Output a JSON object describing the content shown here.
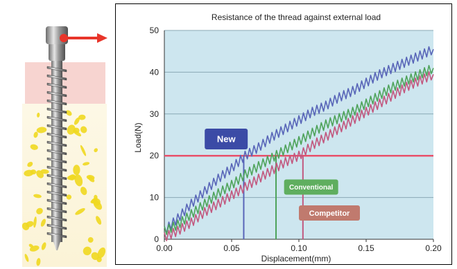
{
  "chart_data": {
    "type": "line",
    "title": "Resistance of the thread against external load",
    "xlabel": "Displacement(mm)",
    "ylabel": "Load(N)",
    "xlim": [
      0,
      0.2
    ],
    "ylim": [
      0,
      50
    ],
    "x_ticks": [
      "0.00",
      "0.05",
      "0.10",
      "0.15",
      "0.20"
    ],
    "y_ticks": [
      "0",
      "10",
      "20",
      "30",
      "40",
      "50"
    ],
    "grid": "horizontal",
    "reference_line": {
      "y": 20,
      "color": "#e8506a"
    },
    "series": [
      {
        "name": "New",
        "color": "#5865b8",
        "x": [
          0,
          0.01,
          0.02,
          0.03,
          0.04,
          0.05,
          0.06,
          0.07,
          0.08,
          0.09,
          0.1,
          0.11,
          0.12,
          0.13,
          0.14,
          0.15,
          0.16,
          0.17,
          0.18,
          0.19,
          0.2
        ],
        "y": [
          2,
          5,
          8.5,
          11.5,
          14.5,
          17,
          20,
          22,
          24.5,
          26.5,
          28.5,
          30.5,
          32,
          34,
          35.5,
          37.5,
          39.5,
          41,
          42.5,
          44,
          45.5
        ],
        "crossing_x": 0.059
      },
      {
        "name": "Conventional",
        "color": "#4ea35a",
        "x": [
          0,
          0.01,
          0.02,
          0.03,
          0.04,
          0.05,
          0.06,
          0.07,
          0.08,
          0.09,
          0.1,
          0.11,
          0.12,
          0.13,
          0.14,
          0.15,
          0.16,
          0.17,
          0.18,
          0.19,
          0.2
        ],
        "y": [
          2,
          3.5,
          6,
          8.5,
          11,
          13,
          15.5,
          17.5,
          19.5,
          21.5,
          23.5,
          25.5,
          27.5,
          29,
          30.5,
          32.5,
          34.5,
          36.5,
          38,
          39.5,
          41
        ],
        "crossing_x": 0.083
      },
      {
        "name": "Competitor",
        "color": "#c2577e",
        "x": [
          0,
          0.01,
          0.02,
          0.03,
          0.04,
          0.05,
          0.06,
          0.07,
          0.08,
          0.09,
          0.1,
          0.11,
          0.12,
          0.13,
          0.14,
          0.15,
          0.16,
          0.17,
          0.18,
          0.19,
          0.2
        ],
        "y": [
          0.5,
          2,
          4,
          6.5,
          8.5,
          10.5,
          12.5,
          14.5,
          16.5,
          18.5,
          20,
          22.5,
          24.5,
          26.5,
          28.5,
          30.5,
          32.5,
          34.5,
          36.5,
          38,
          39.5
        ],
        "crossing_x": 0.103
      }
    ],
    "labels": [
      {
        "text": "New",
        "color": "#3b4ba6"
      },
      {
        "text": "Conventional",
        "color": "#5fae5f"
      },
      {
        "text": "Competitor",
        "color": "#c07a6e"
      }
    ]
  },
  "illustration": {
    "arrow_color": "#e8352a",
    "bone_color": "#f0d820",
    "gum_color": "#f4c6c0"
  }
}
